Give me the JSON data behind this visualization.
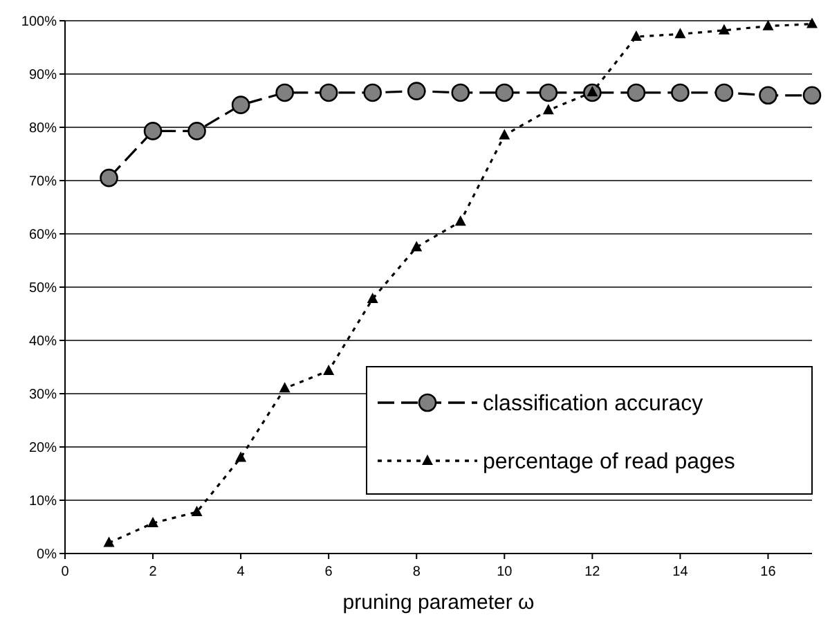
{
  "chart_data": {
    "type": "line",
    "xlabel": "pruning parameter ω",
    "x": [
      1,
      2,
      3,
      4,
      5,
      6,
      7,
      8,
      9,
      10,
      11,
      12,
      13,
      14,
      15,
      16,
      17
    ],
    "series": [
      {
        "name": "classification accuracy",
        "color": "#000000",
        "marker": "circle",
        "line_style": "dashed",
        "values": [
          70.5,
          79.3,
          79.3,
          84.2,
          86.5,
          86.5,
          86.5,
          86.8,
          86.5,
          86.5,
          86.5,
          86.5,
          86.5,
          86.5,
          86.5,
          86,
          86
        ]
      },
      {
        "name": "percentage of read pages",
        "color": "#000000",
        "marker": "triangle",
        "line_style": "dotted",
        "values": [
          2,
          5.7,
          7.8,
          18,
          31,
          34.3,
          47.8,
          57.5,
          62.3,
          78.5,
          83.2,
          86.6,
          97,
          97.5,
          98.2,
          99,
          99.4
        ]
      }
    ],
    "xlim": [
      0,
      17
    ],
    "xticks": [
      0,
      2,
      4,
      6,
      8,
      10,
      12,
      14,
      16
    ],
    "ylim": [
      0,
      100
    ],
    "yticks": [
      {
        "value": 0,
        "label": "0%"
      },
      {
        "value": 10,
        "label": "10%"
      },
      {
        "value": 20,
        "label": "20%"
      },
      {
        "value": 30,
        "label": "30%"
      },
      {
        "value": 40,
        "label": "40%"
      },
      {
        "value": 50,
        "label": "50%"
      },
      {
        "value": 60,
        "label": "60%"
      },
      {
        "value": 70,
        "label": "70%"
      },
      {
        "value": 80,
        "label": "80%"
      },
      {
        "value": 90,
        "label": "90%"
      },
      {
        "value": 100,
        "label": "100%"
      }
    ],
    "grid": "y",
    "legend": "bottom right"
  }
}
